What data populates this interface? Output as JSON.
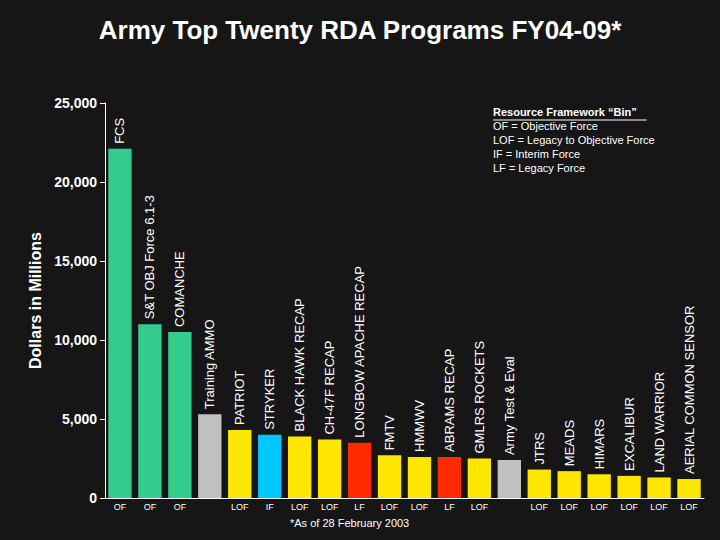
{
  "chart_data": {
    "type": "bar",
    "title": "Army Top Twenty RDA Programs FY04-09*",
    "y_label": "Dollars in Millions",
    "categories": [
      "FCS",
      "S&T OBJ Force 6.1-3",
      "COMANCHE",
      "Training AMMO",
      "PATRIOT",
      "STRYKER",
      "BLACK HAWK RECAP",
      "CH-47F RECAP",
      "LONGBOW APACHE RECAP",
      "FMTV",
      "HMMWV",
      "ABRAMS RECAP",
      "GMLRS ROCKETS",
      "Army Test & Eval",
      "JTRS",
      "MEADS",
      "HIMARS",
      "EXCALIBUR",
      "LAND WARRIOR",
      "AERIAL COMMON SENSOR"
    ],
    "values": [
      22100,
      11000,
      10500,
      5300,
      4300,
      4000,
      3900,
      3700,
      3500,
      2700,
      2600,
      2600,
      2500,
      2400,
      1800,
      1700,
      1500,
      1400,
      1300,
      1200
    ],
    "bin_labels": [
      "OF",
      "OF",
      "OF",
      null,
      "LOF",
      "IF",
      "LOF",
      "LOF",
      "LF",
      "LOF",
      "LOF",
      "LF",
      "LOF",
      null,
      "LOF",
      "LOF",
      "LOF",
      "LOF",
      "LOF",
      "LOF"
    ],
    "colors": [
      "#33cc8c",
      "#33cc8c",
      "#33cc8c",
      "#c0c0c0",
      "#ffe600",
      "#00c8ff",
      "#ffe600",
      "#ffe600",
      "#ff2a00",
      "#ffe600",
      "#ffe600",
      "#ff2a00",
      "#ffe600",
      "#c0c0c0",
      "#ffe600",
      "#ffe600",
      "#ffe600",
      "#ffe600",
      "#ffe600",
      "#ffe600"
    ],
    "ylim": [
      0,
      25000
    ],
    "yticks": [
      0,
      5000,
      10000,
      15000,
      20000,
      25000
    ],
    "grid": false,
    "data_labels": false,
    "annotations": [
      "Resource Framework “Bin”",
      "OF = Objective Force",
      "LOF = Legacy to Objective Force",
      "IF = Interim Force",
      "LF = Legacy Force"
    ],
    "footnote": "*As of 28 February 2003"
  }
}
